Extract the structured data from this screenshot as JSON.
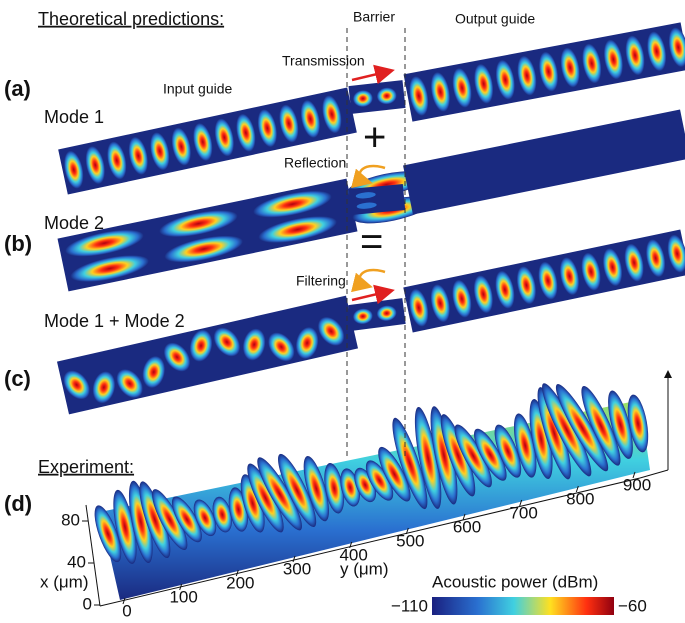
{
  "header": {
    "theory": "Theoretical predictions:",
    "experiment": "Experiment:"
  },
  "panels": [
    {
      "label": "(a)",
      "mode": "Mode 1"
    },
    {
      "label": "(b)",
      "mode": "Mode 2"
    },
    {
      "label": "(c)",
      "mode": "Mode 1 + Mode 2"
    },
    {
      "label": "(d)"
    }
  ],
  "annotations": {
    "input": "Input guide",
    "output": "Output guide",
    "barrier": "Barrier",
    "transmission": "Transmission",
    "reflection": "Reflection",
    "filtering": "Filtering",
    "plus": "+",
    "equals": "="
  },
  "plot3d": {
    "x_label": "x (μm)",
    "y_label": "y (μm)",
    "x_ticks": [
      0,
      40,
      80
    ],
    "y_ticks": [
      0,
      100,
      200,
      300,
      400,
      500,
      600,
      700,
      800,
      900
    ],
    "colorbar": {
      "title": "Acoustic power (dBm)",
      "min_label": "−110",
      "max_label": "−60"
    }
  }
}
